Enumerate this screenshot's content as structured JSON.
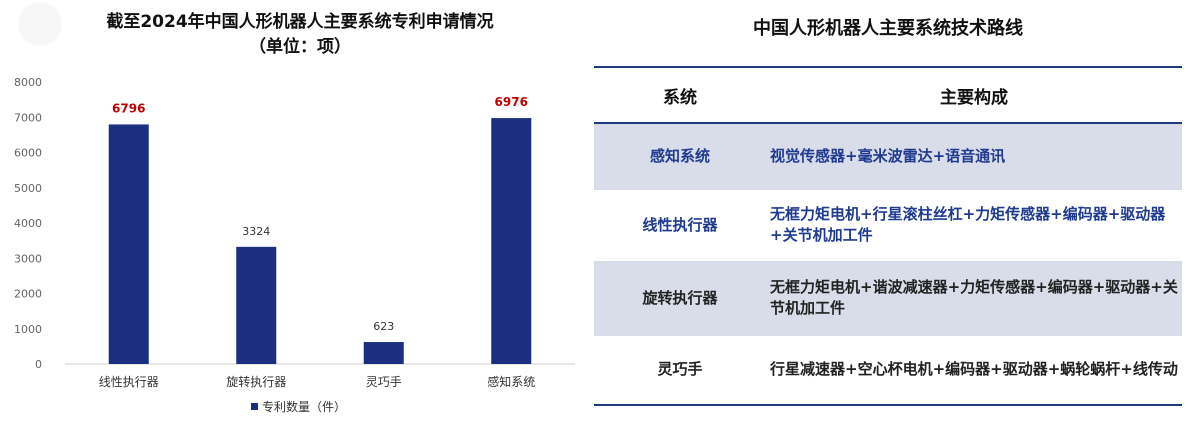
{
  "chart_data": {
    "type": "bar",
    "title": "截至2024年中国人形机器人主要系统专利申请情况",
    "subtitle": "（单位：项）",
    "categories": [
      "线性执行器",
      "旋转执行器",
      "灵巧手",
      "感知系统"
    ],
    "series": [
      {
        "name": "专利数量（件）",
        "values": [
          6796,
          3324,
          623,
          6976
        ],
        "color": "#1a2f80"
      }
    ],
    "data_labels": [
      "6796",
      "3324",
      "623",
      "6976"
    ],
    "highlight_label_color": "#c00000",
    "normal_label_color": "#333333",
    "highlighted": [
      true,
      false,
      false,
      true
    ],
    "ylim": [
      0,
      8000
    ],
    "yticks": [
      "0",
      "1000",
      "2000",
      "3000",
      "4000",
      "5000",
      "6000",
      "7000",
      "8000"
    ],
    "grid": false,
    "legend_position": "bottom"
  },
  "table": {
    "title": "中国人形机器人主要系统技术路线",
    "headers": [
      "系统",
      "主要构成"
    ],
    "rows": [
      {
        "system": "感知系统",
        "components": "视觉传感器+毫米波雷达+语音通讯"
      },
      {
        "system": "线性执行器",
        "components": "无框力矩电机+行星滚柱丝杠+力矩传感器+编码器+驱动器+关节机加工件"
      },
      {
        "system": "旋转执行器",
        "components": "无框力矩电机+谐波减速器+力矩传感器+编码器+驱动器+关节机加工件"
      },
      {
        "system": "灵巧手",
        "components": "行星减速器+空心杯电机+编码器+驱动器+蜗轮蜗杆+线传动"
      }
    ]
  },
  "colors": {
    "accent": "#1f3a7a",
    "shade": "#d9dde9",
    "highlight_text": "#1f3a8f"
  }
}
